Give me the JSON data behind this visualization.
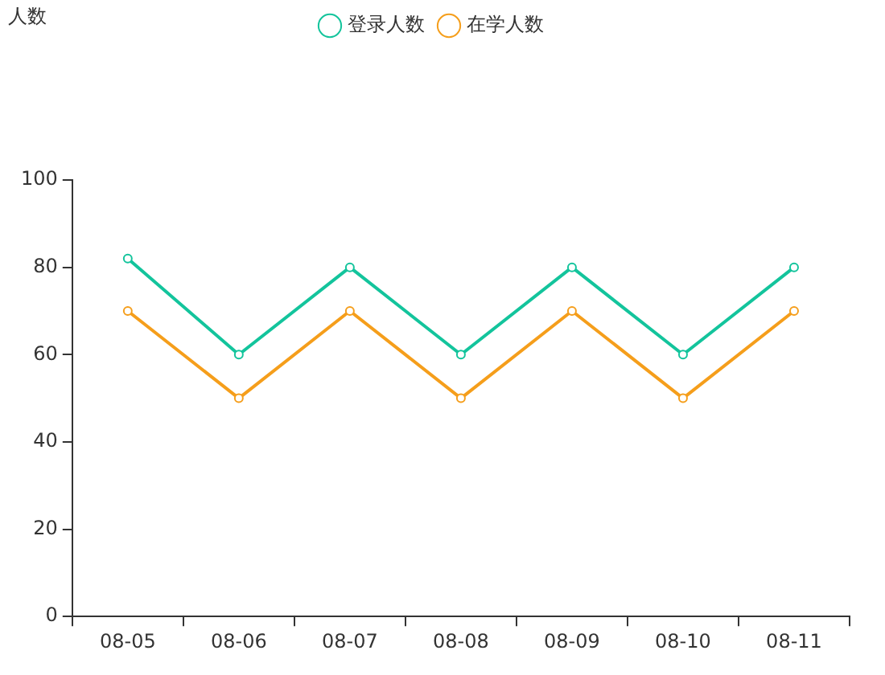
{
  "chart_data": {
    "type": "line",
    "annotations": [
      "人数"
    ],
    "categories": [
      "08-05",
      "08-06",
      "08-07",
      "08-08",
      "08-09",
      "08-10",
      "08-11"
    ],
    "series": [
      {
        "name": "登录人数",
        "color": "#13c49c",
        "values": [
          82,
          60,
          80,
          60,
          80,
          60,
          80
        ]
      },
      {
        "name": "在学人数",
        "color": "#f59e1b",
        "values": [
          70,
          50,
          70,
          50,
          70,
          50,
          70
        ]
      }
    ],
    "ylim": [
      0,
      100
    ],
    "yticks": [
      0,
      20,
      40,
      60,
      80,
      100
    ],
    "grid": false,
    "legend": "top",
    "marker": "circle",
    "line_style": "solid"
  }
}
